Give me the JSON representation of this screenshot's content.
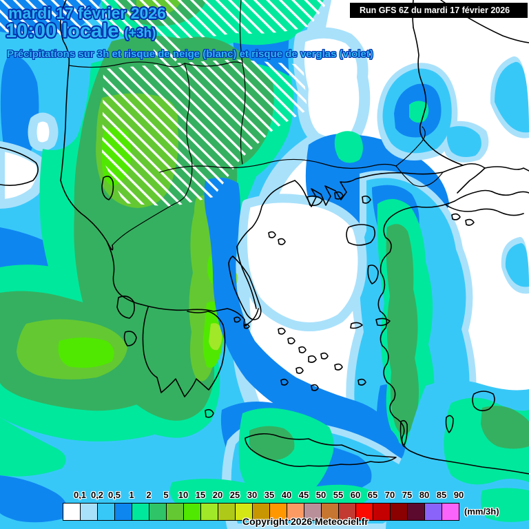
{
  "header": {
    "date": "mardi 17 février 2026",
    "time": "10:00 locale",
    "time_offset": "(+3h)",
    "subtitle": "Précipitations sur 3h et risque de neige (blanc) et risque de verglas (violet)",
    "run_label": "Run GFS 6Z du mardi 17 février 2026"
  },
  "legend": {
    "unit": "(mm/3h)",
    "labels": [
      "0,1",
      "0,2",
      "0,5",
      "1",
      "2",
      "5",
      "10",
      "15",
      "20",
      "25",
      "30",
      "35",
      "40",
      "45",
      "50",
      "55",
      "60",
      "65",
      "70",
      "75",
      "80",
      "85",
      "90"
    ],
    "colors": [
      "#FFFFFF",
      "#A9E1FB",
      "#38C8F8",
      "#0E86F0",
      "#00E89C",
      "#2FC468",
      "#64C832",
      "#50E800",
      "#A0E828",
      "#AFC918",
      "#D4E614",
      "#C89600",
      "#FF9800",
      "#FC9A64",
      "#B9909A",
      "#C67630",
      "#C23A31",
      "#FA0A00",
      "#C40000",
      "#8B0000",
      "#5C0A2E",
      "#8A64FA",
      "#FB64FB"
    ]
  },
  "map": {
    "precip_colors": {
      "trace": "#A9E1FB",
      "light": "#38C8F8",
      "moderate": "#0E86F0",
      "rain_low": "#00E89C",
      "rain_mid": "#35B060",
      "rain_high": "#64C832",
      "rain_intense": "#50E800",
      "rain_peak": "#A0E828"
    },
    "snow_hatch_color": "#FFFFFF",
    "coastline_color": "#000000"
  },
  "footer": {
    "copyright": "Copyright 2026 Meteociel.fr"
  }
}
